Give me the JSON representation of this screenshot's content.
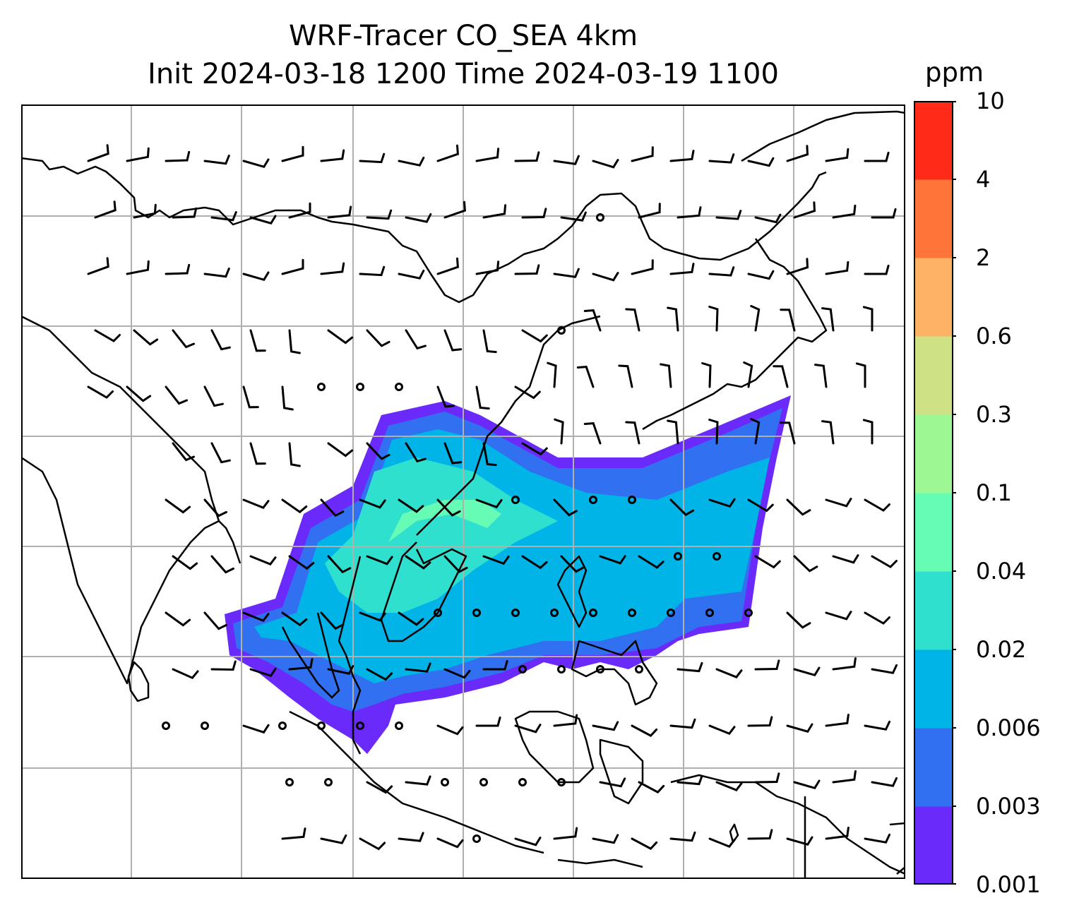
{
  "title": {
    "line1": "WRF-Tracer CO_SEA 4km",
    "line2": "Init 2024-03-18 1200 Time 2024-03-19 1100"
  },
  "colorbar": {
    "unit": "ppm",
    "ticks": [
      "0.001",
      "0.003",
      "0.006",
      "0.02",
      "0.04",
      "0.1",
      "0.3",
      "0.6",
      "2",
      "4",
      "10"
    ],
    "colors": [
      "#6a2bfa",
      "#3270f2",
      "#00b4e8",
      "#2fe0cf",
      "#66fcb5",
      "#9df894",
      "#cee185",
      "#fdb266",
      "#ff7438",
      "#ff2a18"
    ]
  },
  "map": {
    "gridlines": true,
    "grid_color": "#b0b0b0",
    "coastline_color": "#000000",
    "wind_barbs": true,
    "plume_levels_shown": [
      "0.001",
      "0.003",
      "0.006",
      "0.02",
      "0.04"
    ]
  }
}
